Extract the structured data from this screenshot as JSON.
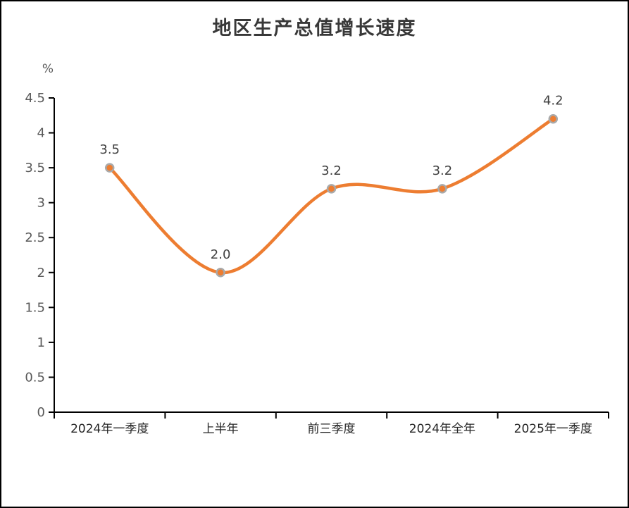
{
  "window": {
    "title": "地区生产总值增长速度"
  },
  "chart_data": {
    "type": "line",
    "title": "地区生产总值增长速度",
    "categories": [
      "2024年一季度",
      "上半年",
      "前三季度",
      "2024年全年",
      "2025年一季度"
    ],
    "series": [
      {
        "name": "地区生产总值增长速度",
        "values": [
          3.5,
          2.0,
          3.2,
          3.2,
          4.2
        ]
      }
    ],
    "data_labels": [
      "3.5",
      "2.0",
      "3.2",
      "3.2",
      "4.2"
    ],
    "unit_label": "%",
    "xlabel": "",
    "ylabel": "%",
    "ylim": [
      0,
      4.5
    ],
    "ytick_step": 0.5,
    "ytick_labels": [
      "0",
      "0.5",
      "1",
      "1.5",
      "2",
      "2.5",
      "3",
      "3.5",
      "4",
      "4.5"
    ],
    "grid": false,
    "legend": "none",
    "smooth": true,
    "colors": {
      "line": "#ED7D31",
      "marker_fill": "#ED7D31",
      "marker_border": "#A9A9A9",
      "axis": "#000000",
      "title_text": "#383838",
      "tick_label_text": "#595959",
      "category_label_text": "#262626",
      "data_label_text": "#404040",
      "background": "#FFFFFF"
    }
  }
}
